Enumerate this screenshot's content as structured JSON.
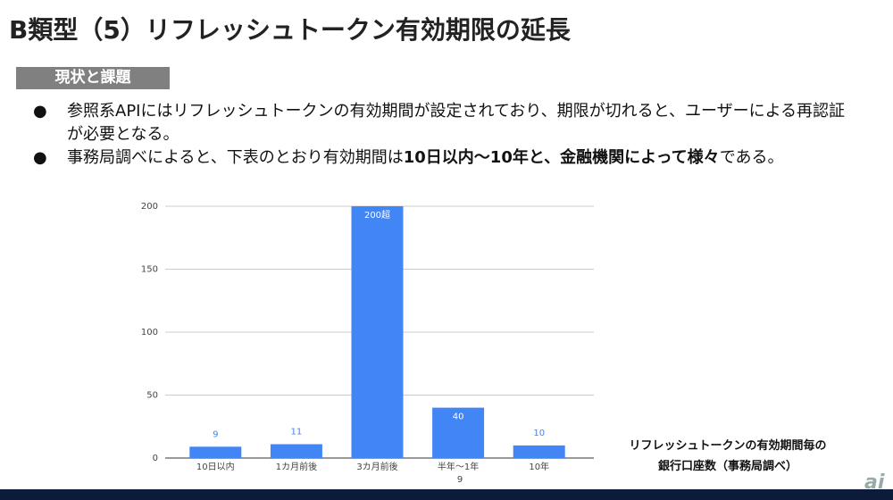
{
  "title": "B類型（5）リフレッシュトークン有効期限の延長",
  "section": "現状と課題",
  "bullets": [
    [
      "参照系APIにはリフレッシュトークンの有効期間が設定されており、期限が切れると、ユーザーによる再認証が必要となる。"
    ],
    [
      "事務局調べによると、下表のとおり有効期間は",
      "10日以内〜10年と、金融機関によって様々",
      "である。"
    ]
  ],
  "caption": [
    "リフレッシュトークンの有効期間毎の",
    "銀行口座数（事務局調べ）"
  ],
  "page_number": "9",
  "watermark": "ai",
  "chart_data": {
    "type": "bar",
    "categories": [
      "10日以内",
      "1カ月前後",
      "3カ月前後",
      "半年～1年",
      "10年"
    ],
    "values": [
      9,
      11,
      200,
      40,
      10
    ],
    "value_labels": [
      "9",
      "11",
      "200超",
      "40",
      "10"
    ],
    "color": "#4285f4",
    "ylim": [
      0,
      200
    ],
    "yticks": [
      0,
      50,
      100,
      150,
      200
    ],
    "grid": true
  }
}
